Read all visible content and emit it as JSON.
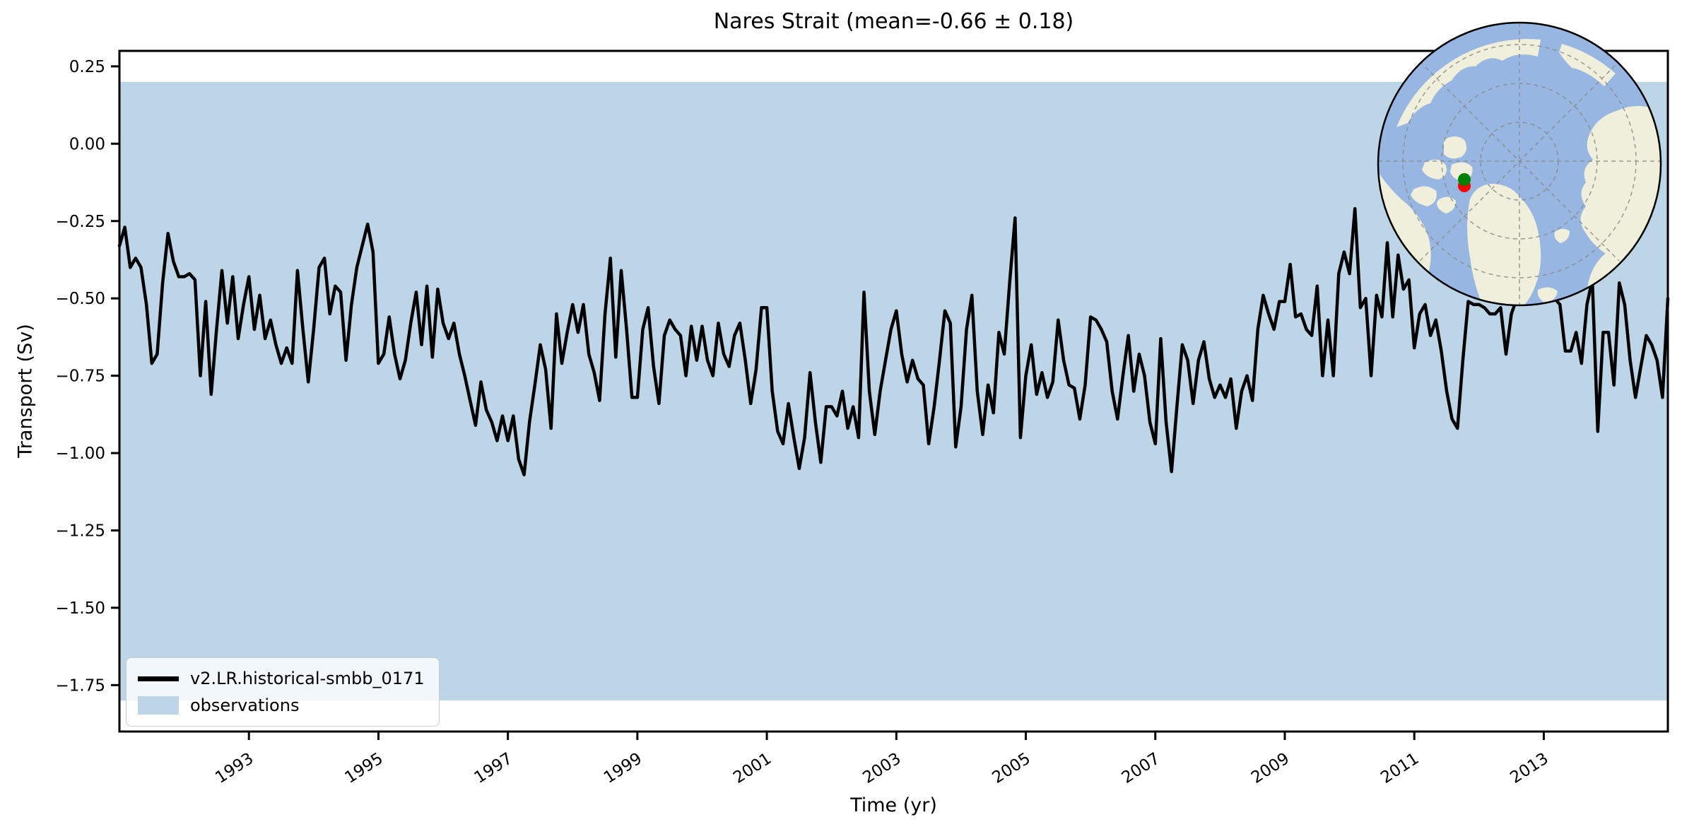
{
  "figure": {
    "title": "Nares Strait (mean=-0.66 ± 0.18)"
  },
  "axes": {
    "xlabel": "Time (yr)",
    "ylabel": "Transport (Sv)"
  },
  "legend": {
    "items": [
      {
        "label": "v2.LR.historical-smbb_0171",
        "swatch": "line",
        "color": "#000000"
      },
      {
        "label": "observations",
        "swatch": "patch",
        "color": "#bcd6e8"
      }
    ]
  },
  "chart_data": {
    "type": "line",
    "title": "Nares Strait (mean=-0.66 ± 0.18)",
    "xlabel": "Time (yr)",
    "ylabel": "Transport (Sv)",
    "xlim": [
      1991.0,
      2014.9167
    ],
    "ylim": [
      -1.9,
      0.3
    ],
    "grid": false,
    "legend_position": "lower left",
    "x_tick_values": [
      1993,
      1995,
      1997,
      1999,
      2001,
      2003,
      2005,
      2007,
      2009,
      2011,
      2013
    ],
    "x_tick_labels": [
      "1993",
      "1995",
      "1997",
      "1999",
      "2001",
      "2003",
      "2005",
      "2007",
      "2009",
      "2011",
      "2013"
    ],
    "y_tick_values": [
      0.25,
      0.0,
      -0.25,
      -0.5,
      -0.75,
      -1.0,
      -1.25,
      -1.5,
      -1.75
    ],
    "y_tick_labels": [
      "0.25",
      "0.00",
      "−0.25",
      "−0.50",
      "−0.75",
      "−1.00",
      "−1.25",
      "−1.50",
      "−1.75"
    ],
    "observations_band": {
      "label": "observations",
      "hi": 0.2,
      "lo": -1.8,
      "color": "#bcd6e8"
    },
    "x_start": 1991.0,
    "x_step": 0.0833333,
    "series": [
      {
        "name": "v2.LR.historical-smbb_0171",
        "color": "#000000",
        "mean": -0.66,
        "std": 0.18,
        "values": [
          -0.33,
          -0.27,
          -0.4,
          -0.37,
          -0.4,
          -0.52,
          -0.71,
          -0.68,
          -0.45,
          -0.29,
          -0.38,
          -0.43,
          -0.43,
          -0.42,
          -0.44,
          -0.75,
          -0.51,
          -0.81,
          -0.6,
          -0.41,
          -0.58,
          -0.43,
          -0.63,
          -0.52,
          -0.43,
          -0.6,
          -0.49,
          -0.63,
          -0.57,
          -0.65,
          -0.71,
          -0.66,
          -0.71,
          -0.41,
          -0.6,
          -0.77,
          -0.6,
          -0.4,
          -0.37,
          -0.55,
          -0.46,
          -0.48,
          -0.7,
          -0.52,
          -0.4,
          -0.33,
          -0.26,
          -0.35,
          -0.71,
          -0.68,
          -0.56,
          -0.68,
          -0.76,
          -0.7,
          -0.58,
          -0.48,
          -0.65,
          -0.46,
          -0.69,
          -0.47,
          -0.58,
          -0.63,
          -0.58,
          -0.68,
          -0.75,
          -0.83,
          -0.91,
          -0.77,
          -0.86,
          -0.9,
          -0.96,
          -0.88,
          -0.96,
          -0.88,
          -1.02,
          -1.07,
          -0.9,
          -0.78,
          -0.65,
          -0.73,
          -0.92,
          -0.55,
          -0.71,
          -0.61,
          -0.52,
          -0.61,
          -0.52,
          -0.68,
          -0.74,
          -0.83,
          -0.55,
          -0.37,
          -0.69,
          -0.41,
          -0.6,
          -0.82,
          -0.82,
          -0.6,
          -0.53,
          -0.72,
          -0.84,
          -0.62,
          -0.57,
          -0.6,
          -0.62,
          -0.75,
          -0.59,
          -0.7,
          -0.59,
          -0.7,
          -0.75,
          -0.58,
          -0.68,
          -0.72,
          -0.62,
          -0.58,
          -0.7,
          -0.84,
          -0.73,
          -0.53,
          -0.53,
          -0.8,
          -0.93,
          -0.97,
          -0.84,
          -0.95,
          -1.05,
          -0.95,
          -0.74,
          -0.9,
          -1.03,
          -0.85,
          -0.85,
          -0.88,
          -0.8,
          -0.92,
          -0.85,
          -0.95,
          -0.48,
          -0.8,
          -0.94,
          -0.8,
          -0.7,
          -0.6,
          -0.54,
          -0.68,
          -0.77,
          -0.7,
          -0.76,
          -0.78,
          -0.97,
          -0.85,
          -0.7,
          -0.54,
          -0.58,
          -0.98,
          -0.85,
          -0.6,
          -0.49,
          -0.8,
          -0.94,
          -0.78,
          -0.87,
          -0.61,
          -0.68,
          -0.45,
          -0.24,
          -0.95,
          -0.75,
          -0.65,
          -0.81,
          -0.74,
          -0.82,
          -0.77,
          -0.57,
          -0.7,
          -0.78,
          -0.79,
          -0.89,
          -0.78,
          -0.56,
          -0.57,
          -0.6,
          -0.64,
          -0.8,
          -0.89,
          -0.75,
          -0.62,
          -0.8,
          -0.68,
          -0.75,
          -0.9,
          -0.97,
          -0.63,
          -0.9,
          -1.06,
          -0.85,
          -0.65,
          -0.7,
          -0.84,
          -0.7,
          -0.64,
          -0.76,
          -0.82,
          -0.78,
          -0.82,
          -0.76,
          -0.92,
          -0.8,
          -0.75,
          -0.83,
          -0.6,
          -0.49,
          -0.55,
          -0.6,
          -0.51,
          -0.51,
          -0.39,
          -0.56,
          -0.55,
          -0.6,
          -0.62,
          -0.46,
          -0.75,
          -0.57,
          -0.75,
          -0.42,
          -0.35,
          -0.42,
          -0.21,
          -0.53,
          -0.5,
          -0.75,
          -0.49,
          -0.56,
          -0.32,
          -0.56,
          -0.36,
          -0.47,
          -0.44,
          -0.66,
          -0.55,
          -0.52,
          -0.62,
          -0.57,
          -0.67,
          -0.8,
          -0.89,
          -0.92,
          -0.7,
          -0.51,
          -0.52,
          -0.52,
          -0.53,
          -0.55,
          -0.55,
          -0.53,
          -0.68,
          -0.55,
          -0.5,
          -0.45,
          -0.42,
          -0.48,
          -0.5,
          -0.45,
          -0.48,
          -0.5,
          -0.52,
          -0.67,
          -0.67,
          -0.61,
          -0.71,
          -0.52,
          -0.44,
          -0.93,
          -0.61,
          -0.61,
          -0.78,
          -0.45,
          -0.52,
          -0.7,
          -0.82,
          -0.72,
          -0.62,
          -0.65,
          -0.7,
          -0.82,
          -0.5
        ]
      }
    ]
  },
  "inset_map": {
    "name": "arctic-polar-inset-map",
    "ocean_color": "#97b6e1",
    "land_color": "#efefdb",
    "graticule_color": "#8a8a8a",
    "border_color": "#000000",
    "markers": [
      {
        "name": "red-location-marker",
        "color": "#ff0000"
      },
      {
        "name": "green-location-marker",
        "color": "#008000"
      }
    ]
  }
}
